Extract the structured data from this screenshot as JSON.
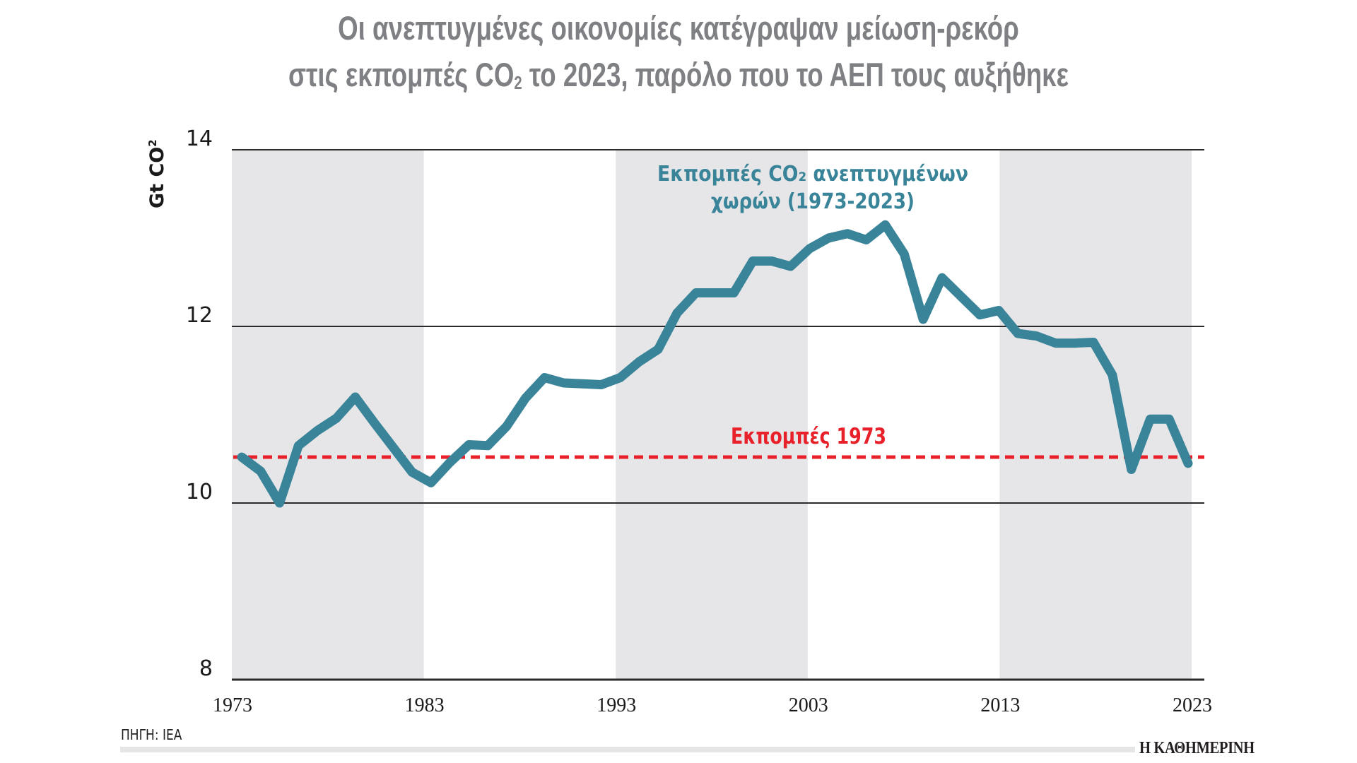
{
  "header": {
    "title_line1": "Οι ανεπτυγμένες οικονομίες κατέγραψαν μείωση-ρεκόρ",
    "title_line2_pre": "στις εκπομπές CO",
    "title_line2_sub": "2",
    "title_line2_post": " το 2023, παρόλο που το ΑΕΠ τους αυξήθηκε"
  },
  "footer": {
    "source": "ΠΗΓΗ: IEA",
    "logo": "Η ΚΑΘΗΜΕΡΙΝΗ"
  },
  "colors": {
    "title": "#7f8083",
    "series": "#3a8499",
    "reference": "#e8202a",
    "band": "#e6e6e8",
    "grid": "#2a2a2a"
  },
  "chart_data": {
    "type": "line",
    "title": "Οι ανεπτυγμένες οικονομίες κατέγραψαν μείωση-ρεκόρ στις εκπομπές CO2 το 2023, παρόλο που το ΑΕΠ τους αυξήθηκε",
    "xlabel": "",
    "ylabel_main": "Gt CO",
    "ylabel_sub": "2",
    "ylim": [
      8,
      14
    ],
    "xlim": [
      1973,
      2023
    ],
    "yticks": [
      "8",
      "10",
      "12",
      "14"
    ],
    "ytick_values": [
      8,
      10,
      12,
      14
    ],
    "xticks": [
      "1973",
      "1983",
      "1993",
      "2003",
      "2013",
      "2023"
    ],
    "xtick_values": [
      1973,
      1983,
      1993,
      2003,
      2013,
      2023
    ],
    "shaded_decades": [
      [
        1973,
        1983
      ],
      [
        1993,
        2003
      ],
      [
        2013,
        2023
      ]
    ],
    "grid": "horizontal",
    "series": [
      {
        "name": "Εκπομπές CO₂ ανεπτυγμένων χωρών (1973-2023)",
        "label_line1": "Εκπομπές CO₂ ανεπτυγμένων",
        "label_line2": "χωρών (1973-2023)",
        "x": [
          1973,
          1974,
          1975,
          1976,
          1977,
          1978,
          1979,
          1980,
          1981,
          1982,
          1983,
          1984,
          1985,
          1986,
          1987,
          1988,
          1989,
          1990,
          1991,
          1992,
          1993,
          1994,
          1995,
          1996,
          1997,
          1998,
          1999,
          2000,
          2001,
          2002,
          2003,
          2004,
          2005,
          2006,
          2007,
          2008,
          2009,
          2010,
          2011,
          2012,
          2013,
          2014,
          2015,
          2016,
          2017,
          2018,
          2019,
          2020,
          2021,
          2022,
          2023
        ],
        "values": [
          10.52,
          10.36,
          10.0,
          10.65,
          10.82,
          10.96,
          11.2,
          10.91,
          10.63,
          10.35,
          10.23,
          10.46,
          10.66,
          10.65,
          10.87,
          11.19,
          11.42,
          11.36,
          11.35,
          11.34,
          11.42,
          11.6,
          11.74,
          12.15,
          12.38,
          12.38,
          12.38,
          12.74,
          12.74,
          12.68,
          12.88,
          13.0,
          13.05,
          12.98,
          13.15,
          12.82,
          12.08,
          12.55,
          12.34,
          12.13,
          12.18,
          11.92,
          11.89,
          11.81,
          11.81,
          11.82,
          11.45,
          10.38,
          10.95,
          10.95,
          10.45
        ]
      }
    ],
    "reference_line": {
      "label": "Εκπομπές 1973",
      "value": 10.52
    }
  }
}
